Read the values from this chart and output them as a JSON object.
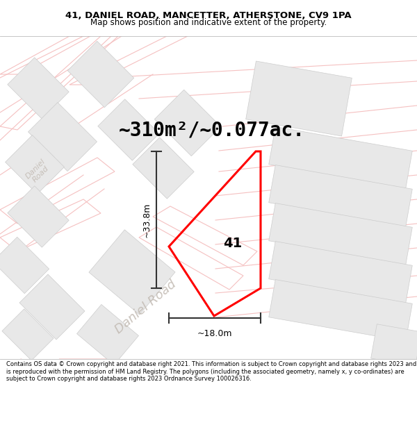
{
  "title_line1": "41, DANIEL ROAD, MANCETTER, ATHERSTONE, CV9 1PA",
  "title_line2": "Map shows position and indicative extent of the property.",
  "area_text": "~310m²/~0.077ac.",
  "property_number": "41",
  "width_label": "~18.0m",
  "height_label": "~33.8m",
  "footer_text": "Contains OS data © Crown copyright and database right 2021. This information is subject to Crown copyright and database rights 2023 and is reproduced with the permission of HM Land Registry. The polygons (including the associated geometry, namely x, y co-ordinates) are subject to Crown copyright and database rights 2023 Ordnance Survey 100026316.",
  "map_bg": "#ffffff",
  "property_color": "#ff0000",
  "road_line_color": "#f5c0c0",
  "building_fill": "#e8e8e8",
  "building_edge": "#cccccc",
  "road_label_color": "#c0b8b0",
  "dim_color": "#333333",
  "title_fontsize": 9.5,
  "subtitle_fontsize": 8.5,
  "area_fontsize": 20,
  "label_fontsize": 14,
  "dim_fontsize": 9,
  "footer_fontsize": 6.0
}
